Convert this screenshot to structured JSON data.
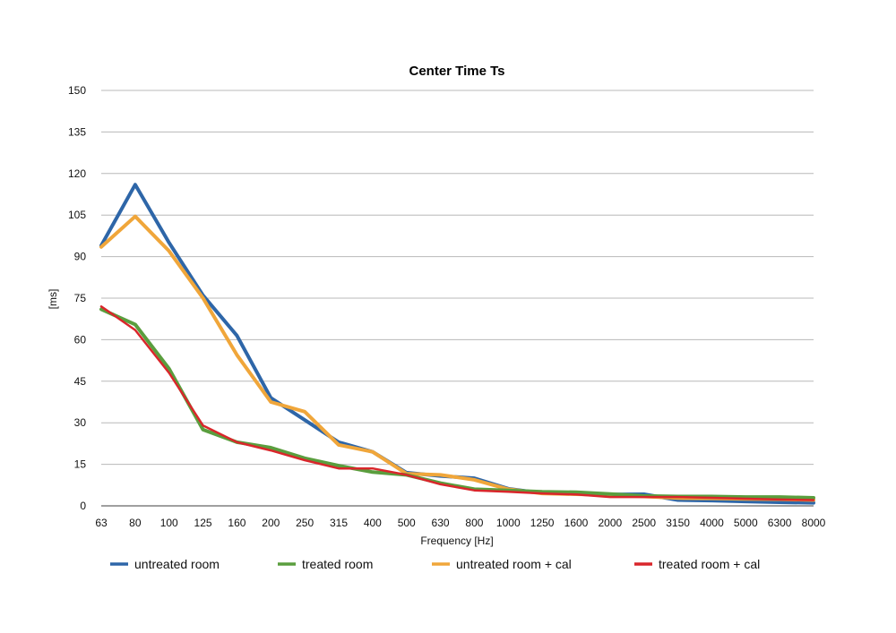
{
  "chart_data": {
    "type": "line",
    "title": "Center Time Ts",
    "xlabel": "Frequency [Hz]",
    "ylabel": "[ms]",
    "ylim": [
      0,
      150
    ],
    "yticks": [
      0,
      15,
      30,
      45,
      60,
      75,
      90,
      105,
      120,
      135,
      150
    ],
    "grid": true,
    "legend_position": "bottom",
    "categories": [
      "63",
      "80",
      "100",
      "125",
      "160",
      "200",
      "250",
      "315",
      "400",
      "500",
      "630",
      "800",
      "1000",
      "1250",
      "1600",
      "2000",
      "2500",
      "3150",
      "4000",
      "5000",
      "6300",
      "8000"
    ],
    "series": [
      {
        "name": "untreated room",
        "color": "#2e66a8",
        "values": [
          94,
          116,
          95,
          76,
          61.5,
          39,
          31,
          23,
          19.5,
          12,
          10.8,
          10,
          6.2,
          4.6,
          4.3,
          4.1,
          4.2,
          2.1,
          1.9,
          1.6,
          1.3,
          1.1
        ]
      },
      {
        "name": "treated room",
        "color": "#5a9e3e",
        "values": [
          71,
          65.5,
          49.5,
          27.5,
          23,
          21,
          17.2,
          14.5,
          12.2,
          11.2,
          8.2,
          6,
          5.6,
          5.1,
          4.9,
          4.3,
          3.6,
          3.4,
          3.4,
          3.2,
          3.2,
          2.9
        ]
      },
      {
        "name": "untreated room + cal",
        "color": "#f0a63a",
        "values": [
          93.5,
          104.5,
          92,
          75,
          54.5,
          37.5,
          34,
          22,
          19.5,
          11.6,
          11.2,
          9.4,
          6,
          4.5,
          4.2,
          3.9,
          3.4,
          2.8,
          2.7,
          2.5,
          2.4,
          2.1
        ]
      },
      {
        "name": "treated room + cal",
        "color": "#d9262b",
        "values": [
          72,
          63.5,
          48,
          29,
          23,
          20,
          16.5,
          13.5,
          13.5,
          11.2,
          7.8,
          5.6,
          5.1,
          4.5,
          4.1,
          3.2,
          3.2,
          3.2,
          2.9,
          2.6,
          2.3,
          2.1
        ]
      }
    ]
  }
}
